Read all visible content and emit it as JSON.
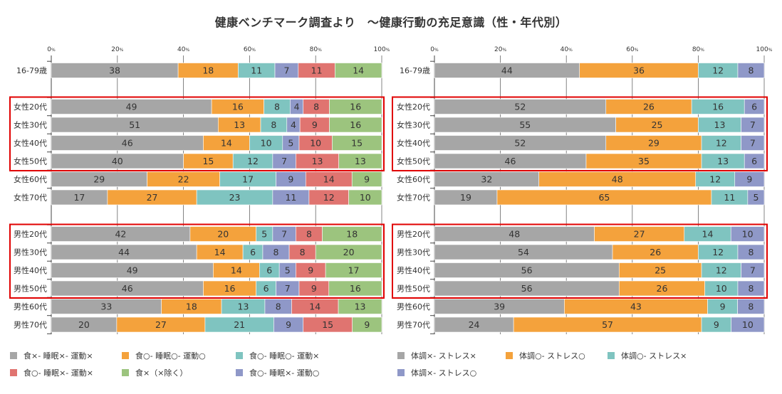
{
  "title": "健康ベンチマーク調査より　～健康行動の充足意識（性・年代別）",
  "chart_data": [
    {
      "type": "bar",
      "orientation": "horizontal-stacked-100",
      "xlim": [
        0,
        100
      ],
      "ticks": [
        "0",
        "20",
        "40",
        "60",
        "80",
        "100"
      ],
      "tick_suffix": "%",
      "grid": true,
      "legend_position": "bottom",
      "categories": [
        "16-79歳",
        "女性20代",
        "女性30代",
        "女性40代",
        "女性50代",
        "女性60代",
        "女性70代",
        "男性20代",
        "男性30代",
        "男性40代",
        "男性50代",
        "男性60代",
        "男性70代"
      ],
      "highlight_groups": [
        [
          "女性20代",
          "女性50代"
        ],
        [
          "男性20代",
          "男性50代"
        ]
      ],
      "series": [
        {
          "name": "食×- 睡眠×- 運動×",
          "color": "#a6a6a6",
          "values": [
            38,
            49,
            51,
            46,
            40,
            29,
            17,
            42,
            44,
            49,
            46,
            33,
            20
          ]
        },
        {
          "name": "食○- 睡眠○- 運動○",
          "color": "#f4a23c",
          "values": [
            18,
            16,
            13,
            14,
            15,
            22,
            27,
            20,
            14,
            14,
            16,
            18,
            27
          ]
        },
        {
          "name": "食○- 睡眠○- 運動×",
          "color": "#7fc4c0",
          "values": [
            11,
            8,
            8,
            10,
            12,
            17,
            23,
            5,
            6,
            6,
            6,
            13,
            21
          ]
        },
        {
          "name": "食○- 睡眠×- 運動○",
          "color": "#8f98c8",
          "values": [
            7,
            4,
            4,
            5,
            7,
            9,
            11,
            7,
            8,
            5,
            7,
            8,
            9
          ]
        },
        {
          "name": "食○- 睡眠×- 運動×",
          "color": "#e07470",
          "values": [
            11,
            8,
            9,
            10,
            13,
            14,
            12,
            8,
            8,
            9,
            9,
            14,
            15
          ]
        },
        {
          "name": "食×（×除く）",
          "color": "#9cc47e",
          "values": [
            14,
            16,
            16,
            15,
            13,
            9,
            10,
            18,
            20,
            17,
            16,
            13,
            9
          ]
        }
      ],
      "legend_order": [
        0,
        1,
        2,
        4,
        5,
        3
      ],
      "legend_labels": [
        "食×- 睡眠×- 運動×",
        "食○- 睡眠○- 運動○",
        "食○- 睡眠○- 運動×",
        "食○- 睡眠×- 運動×",
        "食×（×除く）",
        "食○- 睡眠×- 運動○"
      ]
    },
    {
      "type": "bar",
      "orientation": "horizontal-stacked-100",
      "xlim": [
        0,
        100
      ],
      "ticks": [
        "0",
        "20",
        "40",
        "60",
        "80",
        "100"
      ],
      "tick_suffix": "%",
      "grid": true,
      "legend_position": "bottom",
      "categories": [
        "16-79歳",
        "女性20代",
        "女性30代",
        "女性40代",
        "女性50代",
        "女性60代",
        "女性70代",
        "男性20代",
        "男性30代",
        "男性40代",
        "男性50代",
        "男性60代",
        "男性70代"
      ],
      "highlight_groups": [
        [
          "女性20代",
          "女性50代"
        ],
        [
          "男性20代",
          "男性50代"
        ]
      ],
      "series": [
        {
          "name": "体調×- ストレス×",
          "color": "#a6a6a6",
          "values": [
            44,
            52,
            55,
            52,
            46,
            32,
            19,
            48,
            54,
            56,
            56,
            39,
            24
          ]
        },
        {
          "name": "体調○- ストレス○",
          "color": "#f4a23c",
          "values": [
            36,
            26,
            25,
            29,
            35,
            48,
            65,
            27,
            26,
            25,
            26,
            43,
            57
          ]
        },
        {
          "name": "体調○- ストレス×",
          "color": "#7fc4c0",
          "values": [
            12,
            16,
            13,
            12,
            13,
            12,
            11,
            14,
            12,
            12,
            10,
            9,
            9
          ]
        },
        {
          "name": "体調×- ストレス○",
          "color": "#8f98c8",
          "values": [
            8,
            6,
            7,
            7,
            6,
            9,
            5,
            10,
            8,
            7,
            8,
            8,
            10
          ]
        }
      ],
      "legend_order": [
        0,
        1,
        2,
        3
      ],
      "legend_labels": [
        "体調×- ストレス×",
        "体調○- ストレス○",
        "体調○- ストレス×",
        "体調×- ストレス○"
      ]
    }
  ],
  "highlight_color": "#e00000"
}
